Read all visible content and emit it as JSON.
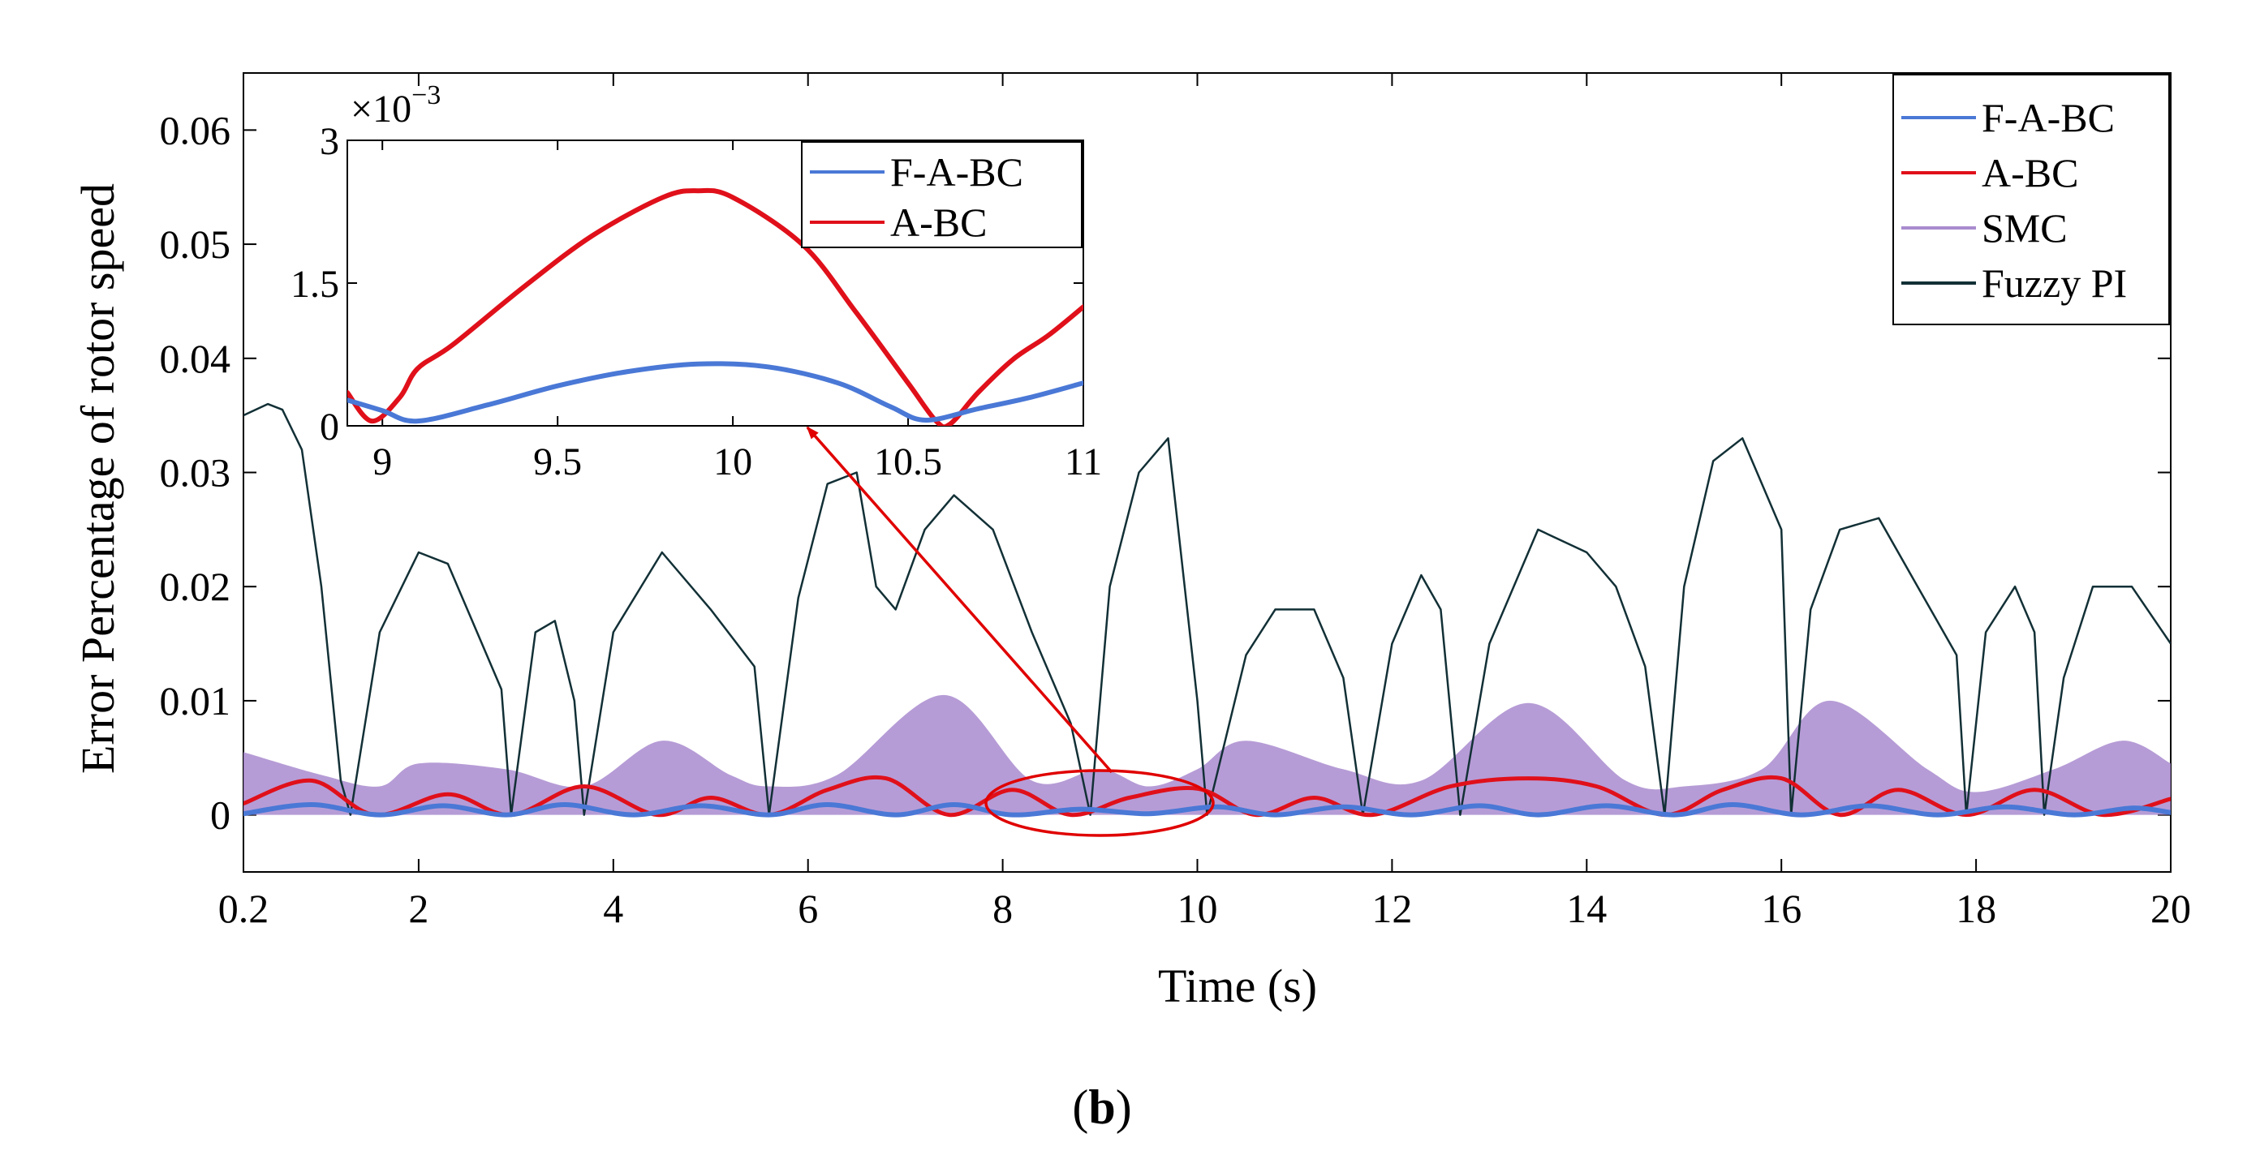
{
  "figure": {
    "caption_letter": "b",
    "caption_open": "(",
    "caption_close": ")"
  },
  "colors": {
    "F-A-BC": "#4a78d6",
    "A-BC": "#e0101a",
    "SMC": "#a98bcf",
    "Fuzzy PI": "#123036",
    "annotation": "#e00000"
  },
  "chart_data": [
    {
      "type": "line",
      "title": "",
      "xlabel": "Time (s)",
      "ylabel": "Error  Percentage  of  rotor  speed",
      "xlim": [
        0.2,
        20
      ],
      "ylim": [
        -0.005,
        0.065
      ],
      "xticks": [
        0.2,
        2,
        4,
        6,
        8,
        10,
        12,
        14,
        16,
        18,
        20
      ],
      "xtick_labels": [
        "0.2",
        "2",
        "4",
        "6",
        "8",
        "10",
        "12",
        "14",
        "16",
        "18",
        "20"
      ],
      "yticks": [
        0,
        0.01,
        0.02,
        0.03,
        0.04,
        0.05,
        0.06
      ],
      "ytick_labels": [
        "0",
        "0.01",
        "0.02",
        "0.03",
        "0.04",
        "0.05",
        "0.06"
      ],
      "grid": false,
      "legend": "top-right",
      "series": [
        {
          "name": "F-A-BC",
          "x": [
            0.2,
            0.9,
            1.6,
            2.25,
            2.9,
            3.5,
            4.2,
            4.9,
            5.6,
            6.2,
            6.9,
            7.5,
            8.1,
            8.8,
            9.5,
            10.2,
            10.8,
            11.5,
            12.2,
            12.9,
            13.5,
            14.2,
            14.9,
            15.5,
            16.2,
            16.9,
            17.6,
            18.3,
            19.0,
            19.6,
            20.0
          ],
          "y": [
            0.0001,
            0.0009,
            0.0,
            0.0008,
            0.0,
            0.0009,
            0.0,
            0.0008,
            0.0,
            0.0009,
            0.0,
            0.0009,
            0.0,
            0.0005,
            0.0001,
            0.0007,
            0.0,
            0.0007,
            0.0,
            0.0008,
            0.0,
            0.0008,
            0.0,
            0.0009,
            0.0,
            0.0008,
            0.0,
            0.0007,
            0.0,
            0.0006,
            0.0002
          ]
        },
        {
          "name": "A-BC",
          "x": [
            0.2,
            0.9,
            1.55,
            2.3,
            2.95,
            3.7,
            4.45,
            5.0,
            5.6,
            6.2,
            6.8,
            7.45,
            8.1,
            8.7,
            9.3,
            10.0,
            10.6,
            11.2,
            11.8,
            12.6,
            13.4,
            14.1,
            14.8,
            15.4,
            16.0,
            16.6,
            17.2,
            17.9,
            18.6,
            19.3,
            20.0
          ],
          "y": [
            0.001,
            0.003,
            0.0,
            0.0018,
            0.0,
            0.0025,
            0.0,
            0.0015,
            0.0,
            0.0022,
            0.0032,
            0.0,
            0.0022,
            0.0,
            0.0015,
            0.0023,
            0.0,
            0.0015,
            0.0,
            0.0025,
            0.0032,
            0.0025,
            0.0,
            0.0022,
            0.0032,
            0.0,
            0.0022,
            0.0,
            0.0022,
            0.0,
            0.0014
          ]
        },
        {
          "name": "SMC",
          "x": [
            0.2,
            1.0,
            1.6,
            2.0,
            2.9,
            3.7,
            4.5,
            5.2,
            5.6,
            6.3,
            7.4,
            8.3,
            9.0,
            9.5,
            10.0,
            10.5,
            11.5,
            12.3,
            13.4,
            14.4,
            15.0,
            15.8,
            16.5,
            17.5,
            18.0,
            18.8,
            19.5,
            20.0
          ],
          "y": [
            0.0055,
            0.0035,
            0.0025,
            0.0045,
            0.004,
            0.0025,
            0.0065,
            0.0035,
            0.0025,
            0.0035,
            0.0105,
            0.003,
            0.004,
            0.0025,
            0.004,
            0.0065,
            0.004,
            0.003,
            0.0098,
            0.003,
            0.0025,
            0.004,
            0.01,
            0.004,
            0.002,
            0.004,
            0.0065,
            0.0045
          ]
        },
        {
          "name": "Fuzzy PI",
          "x": [
            0.2,
            0.45,
            0.6,
            0.8,
            1.0,
            1.2,
            1.3,
            1.6,
            2.0,
            2.3,
            2.6,
            2.85,
            2.95,
            3.2,
            3.4,
            3.6,
            3.7,
            4.0,
            4.5,
            5.0,
            5.45,
            5.6,
            5.9,
            6.2,
            6.5,
            6.7,
            6.9,
            7.2,
            7.5,
            7.9,
            8.3,
            8.7,
            8.9,
            9.1,
            9.4,
            9.7,
            10.0,
            10.1,
            10.5,
            10.8,
            11.2,
            11.5,
            11.7,
            12.0,
            12.3,
            12.5,
            12.7,
            13.0,
            13.5,
            14.0,
            14.3,
            14.6,
            14.8,
            15.0,
            15.3,
            15.6,
            16.0,
            16.1,
            16.3,
            16.6,
            17.0,
            17.4,
            17.8,
            17.9,
            18.1,
            18.4,
            18.6,
            18.7,
            18.9,
            19.2,
            19.6,
            20.0
          ],
          "y": [
            0.035,
            0.036,
            0.0355,
            0.032,
            0.02,
            0.003,
            0.0,
            0.016,
            0.023,
            0.022,
            0.016,
            0.011,
            0.0,
            0.016,
            0.017,
            0.01,
            0.0,
            0.016,
            0.023,
            0.018,
            0.013,
            0.0,
            0.019,
            0.029,
            0.03,
            0.02,
            0.018,
            0.025,
            0.028,
            0.025,
            0.016,
            0.008,
            0.0,
            0.02,
            0.03,
            0.033,
            0.01,
            0.0,
            0.014,
            0.018,
            0.018,
            0.012,
            0.0,
            0.015,
            0.021,
            0.018,
            0.0,
            0.015,
            0.025,
            0.023,
            0.02,
            0.013,
            0.0,
            0.02,
            0.031,
            0.033,
            0.025,
            0.0,
            0.018,
            0.025,
            0.026,
            0.02,
            0.014,
            0.0,
            0.016,
            0.02,
            0.016,
            0.0,
            0.012,
            0.02,
            0.02,
            0.015
          ]
        }
      ]
    },
    {
      "type": "line",
      "title": "",
      "exponent_label": "×10",
      "exponent_power": "−3",
      "xlim": [
        8.9,
        11
      ],
      "ylim": [
        0,
        3
      ],
      "xticks": [
        9,
        9.5,
        10,
        10.5,
        11
      ],
      "xtick_labels": [
        "9",
        "9.5",
        "10",
        "10.5",
        "11"
      ],
      "yticks": [
        0,
        1.5,
        3
      ],
      "ytick_labels": [
        "0",
        "1.5",
        "3"
      ],
      "grid": false,
      "legend": "top-right",
      "series": [
        {
          "name": "F-A-BC",
          "x": [
            8.9,
            9.0,
            9.1,
            9.3,
            9.5,
            9.7,
            9.9,
            10.1,
            10.3,
            10.45,
            10.55,
            10.7,
            10.85,
            11.0
          ],
          "y": [
            0.27,
            0.16,
            0.05,
            0.22,
            0.42,
            0.57,
            0.65,
            0.62,
            0.45,
            0.2,
            0.06,
            0.18,
            0.3,
            0.45
          ]
        },
        {
          "name": "A-BC",
          "x": [
            8.9,
            8.97,
            9.05,
            9.1,
            9.2,
            9.4,
            9.6,
            9.8,
            9.9,
            10.0,
            10.2,
            10.35,
            10.5,
            10.58,
            10.62,
            10.7,
            10.8,
            10.9,
            11.0
          ],
          "y": [
            0.35,
            0.05,
            0.3,
            0.6,
            0.85,
            1.45,
            2.0,
            2.4,
            2.47,
            2.4,
            1.9,
            1.2,
            0.45,
            0.05,
            0.02,
            0.35,
            0.7,
            0.95,
            1.25
          ]
        }
      ]
    }
  ]
}
